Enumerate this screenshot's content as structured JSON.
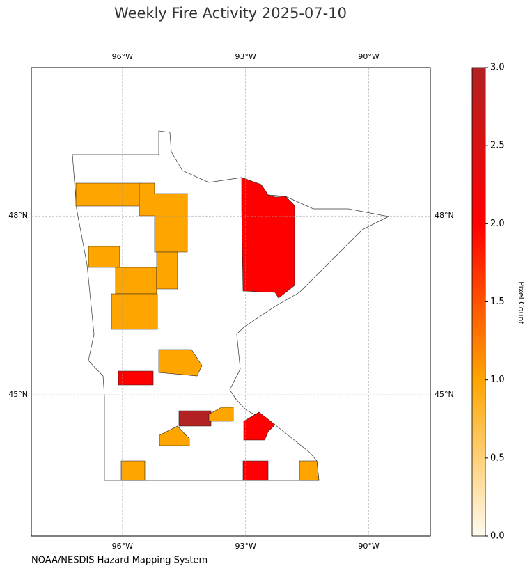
{
  "chart_data": {
    "type": "choropleth",
    "title": "Weekly Fire Activity 2025-07-10",
    "source": "NOAA/NESDIS Hazard Mapping System",
    "values": [
      1,
      1,
      1,
      1,
      1,
      1,
      2,
      1,
      2,
      3,
      1,
      2,
      1,
      1,
      2,
      1
    ],
    "xlim": [
      -98.22,
      -88.5
    ],
    "ylim": [
      42.63,
      50.49
    ],
    "xticks": [
      {
        "value": -96,
        "label": "96°W"
      },
      {
        "value": -93,
        "label": "93°W"
      },
      {
        "value": -90,
        "label": "90°W"
      }
    ],
    "yticks": [
      {
        "value": 45,
        "label": "45°N"
      },
      {
        "value": 48,
        "label": "48°N"
      }
    ],
    "grid": true,
    "colorbar": {
      "label": "Pixel Count",
      "clim": [
        0,
        3
      ],
      "colormap": [
        "#fffbf0",
        "#ffa500",
        "#ff0000",
        "#b22222"
      ],
      "ticks": [
        {
          "value": 0,
          "label": "0.0"
        },
        {
          "value": 0.5,
          "label": "0.5"
        },
        {
          "value": 1,
          "label": "1.0"
        },
        {
          "value": 1.5,
          "label": "1.5"
        },
        {
          "value": 2,
          "label": "2.0"
        },
        {
          "value": 2.5,
          "label": "2.5"
        },
        {
          "value": 3,
          "label": "3.0"
        }
      ]
    }
  }
}
